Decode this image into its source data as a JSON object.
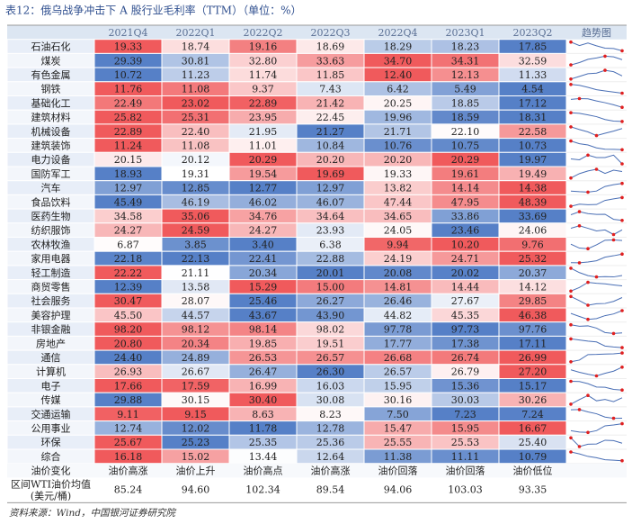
{
  "title": "表12：俄乌战争冲击下 A 股行业毛利率（TTM）（单位：%）",
  "table": {
    "header": [
      "",
      "2021Q4",
      "2022Q1",
      "2022Q2",
      "2022Q3",
      "2022Q4",
      "2023Q1",
      "2023Q2",
      "趋势图"
    ],
    "rows": [
      [
        "石油石化",
        "19.33",
        "18.74",
        "19.16",
        "18.69",
        "18.29",
        "18.23",
        "17.85"
      ],
      [
        "煤炭",
        "29.39",
        "30.81",
        "32.80",
        "33.63",
        "34.70",
        "34.31",
        "32.59"
      ],
      [
        "有色金属",
        "10.72",
        "11.23",
        "11.74",
        "11.85",
        "12.40",
        "12.13",
        "11.33"
      ],
      [
        "钢铁",
        "11.76",
        "11.08",
        "9.37",
        "7.43",
        "6.42",
        "5.49",
        "4.54"
      ],
      [
        "基础化工",
        "22.49",
        "23.02",
        "22.89",
        "21.42",
        "20.25",
        "18.85",
        "17.12"
      ],
      [
        "建筑材料",
        "25.82",
        "25.31",
        "23.95",
        "22.45",
        "19.96",
        "18.59",
        "18.31"
      ],
      [
        "机械设备",
        "22.89",
        "22.40",
        "21.95",
        "21.27",
        "21.71",
        "22.10",
        "22.58"
      ],
      [
        "建筑装饰",
        "11.24",
        "11.08",
        "11.01",
        "10.84",
        "10.76",
        "10.75",
        "10.73"
      ],
      [
        "电力设备",
        "20.15",
        "20.12",
        "20.29",
        "20.20",
        "20.20",
        "20.29",
        "19.97"
      ],
      [
        "国防军工",
        "18.93",
        "19.31",
        "19.54",
        "19.69",
        "19.33",
        "19.61",
        "19.49"
      ],
      [
        "汽车",
        "12.97",
        "12.85",
        "12.77",
        "12.97",
        "13.82",
        "14.14",
        "14.38"
      ],
      [
        "食品饮料",
        "45.49",
        "46.19",
        "46.02",
        "46.07",
        "47.44",
        "47.95",
        "48.39"
      ],
      [
        "医药生物",
        "34.58",
        "35.06",
        "34.76",
        "34.64",
        "34.65",
        "33.86",
        "33.69"
      ],
      [
        "纺织服饰",
        "24.27",
        "24.59",
        "24.27",
        "23.93",
        "24.05",
        "23.46",
        "24.06"
      ],
      [
        "农林牧渔",
        "6.87",
        "3.85",
        "3.40",
        "6.38",
        "9.94",
        "10.20",
        "9.76"
      ],
      [
        "家用电器",
        "22.18",
        "22.13",
        "22.41",
        "22.88",
        "24.19",
        "24.71",
        "25.32"
      ],
      [
        "轻工制造",
        "22.22",
        "21.11",
        "20.34",
        "20.01",
        "20.08",
        "20.02",
        "20.37"
      ],
      [
        "商贸零售",
        "12.39",
        "13.58",
        "15.29",
        "15.00",
        "14.81",
        "14.44",
        "14.12"
      ],
      [
        "社会服务",
        "30.47",
        "28.07",
        "25.46",
        "26.27",
        "26.46",
        "27.67",
        "29.85"
      ],
      [
        "美容护理",
        "45.50",
        "44.57",
        "43.67",
        "43.90",
        "44.82",
        "45.35",
        "46.38"
      ],
      [
        "非银金融",
        "98.20",
        "98.12",
        "98.14",
        "98.02",
        "97.78",
        "97.73",
        "97.76"
      ],
      [
        "房地产",
        "20.80",
        "20.34",
        "19.85",
        "19.51",
        "17.77",
        "17.38",
        "17.11"
      ],
      [
        "通信",
        "24.40",
        "24.89",
        "26.53",
        "26.57",
        "26.68",
        "26.74",
        "26.99"
      ],
      [
        "计算机",
        "26.93",
        "26.67",
        "26.47",
        "26.30",
        "26.57",
        "26.79",
        "27.20"
      ],
      [
        "电子",
        "17.66",
        "17.59",
        "16.99",
        "16.03",
        "15.95",
        "15.36",
        "15.17"
      ],
      [
        "传媒",
        "29.88",
        "30.15",
        "30.40",
        "30.08",
        "30.16",
        "30.03",
        "30.26"
      ],
      [
        "交通运输",
        "9.11",
        "9.15",
        "8.63",
        "8.23",
        "7.50",
        "7.23",
        "7.24"
      ],
      [
        "公用事业",
        "12.74",
        "12.02",
        "11.78",
        "12.78",
        "15.47",
        "15.95",
        "16.67"
      ],
      [
        "环保",
        "25.67",
        "25.23",
        "25.35",
        "25.36",
        "25.55",
        "25.53",
        "25.40"
      ],
      [
        "综合",
        "16.18",
        "15.02",
        "13.44",
        "12.64",
        "11.38",
        "11.11",
        "10.79"
      ]
    ],
    "oil_change": [
      "油价变化",
      "油价高涨",
      "油价上升",
      "油价高点",
      "油价高涨",
      "油价回落",
      "油价回落",
      "油价低位"
    ],
    "wti": {
      "label": [
        "区间WTI油价均值",
        "(美元/桶)"
      ],
      "values": [
        "85.24",
        "94.60",
        "102.34",
        "89.54",
        "94.06",
        "103.03",
        "93.35"
      ]
    }
  },
  "source": "资料来源：Wind，中国银河证券研究院"
}
